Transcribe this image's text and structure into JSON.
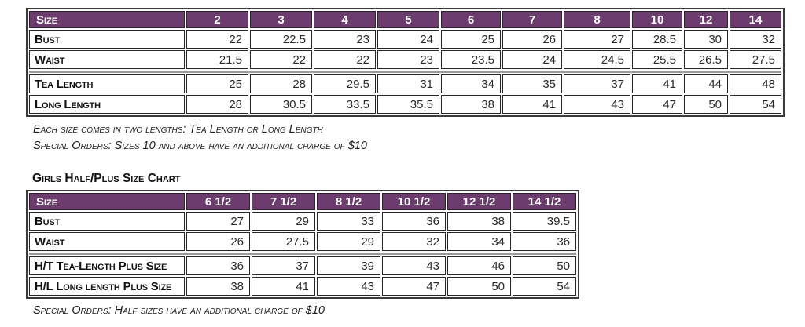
{
  "colors": {
    "header_bg": "#6d3c6e",
    "header_text": "#ffffff",
    "border_dark": "#262626",
    "divider_gray": "#9b9b9b"
  },
  "table1": {
    "header": [
      "Size",
      "2",
      "3",
      "4",
      "5",
      "6",
      "7",
      "8",
      "10",
      "12",
      "14"
    ],
    "rows": [
      {
        "label": "Bust",
        "values": [
          "22",
          "22.5",
          "23",
          "24",
          "25",
          "26",
          "27",
          "28.5",
          "30",
          "32"
        ]
      },
      {
        "label": "Waist",
        "values": [
          "21.5",
          "22",
          "22",
          "23",
          "23.5",
          "24",
          "24.5",
          "25.5",
          "26.5",
          "27.5"
        ]
      },
      {
        "label": "Tea Length",
        "values": [
          "25",
          "28",
          "29.5",
          "31",
          "34",
          "35",
          "37",
          "41",
          "44",
          "48"
        ]
      },
      {
        "label": "Long Length",
        "values": [
          "28",
          "30.5",
          "33.5",
          "35.5",
          "38",
          "41",
          "43",
          "47",
          "50",
          "54"
        ]
      }
    ],
    "divider_after_row": 1,
    "notes": [
      "Each size comes in two lengths: Tea Length or Long Length",
      "Special Orders: Sizes 10 and above have an additional charge of $10"
    ]
  },
  "table2": {
    "title": "Girls Half/Plus Size Chart",
    "header": [
      "Size",
      "6 1/2",
      "7 1/2",
      "8 1/2",
      "10 1/2",
      "12 1/2",
      "14 1/2"
    ],
    "rows": [
      {
        "label": "Bust",
        "values": [
          "27",
          "29",
          "33",
          "36",
          "38",
          "39.5"
        ]
      },
      {
        "label": "Waist",
        "values": [
          "26",
          "27.5",
          "29",
          "32",
          "34",
          "36"
        ]
      },
      {
        "label": "H/T Tea-Length Plus Size",
        "values": [
          "36",
          "37",
          "39",
          "43",
          "46",
          "50"
        ]
      },
      {
        "label": "H/L Long length Plus Size",
        "values": [
          "38",
          "41",
          "43",
          "47",
          "50",
          "54"
        ]
      }
    ],
    "divider_after_row": 1,
    "notes": [
      "Special Orders: Half sizes have an additional charge of $10"
    ]
  }
}
